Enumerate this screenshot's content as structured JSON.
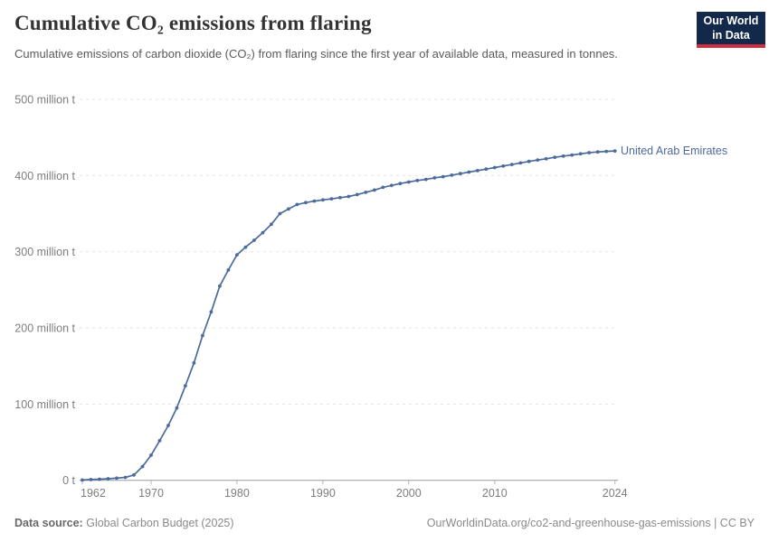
{
  "header": {
    "title": "Cumulative CO₂ emissions from flaring",
    "subtitle": "Cumulative emissions of carbon dioxide (CO₂) from flaring since the first year of available data, measured in tonnes."
  },
  "logo": {
    "line1": "Our World",
    "line2": "in Data",
    "bg_color": "#12294B",
    "accent_color": "#CE2E41"
  },
  "chart_data": {
    "type": "line",
    "title": "Cumulative CO₂ emissions from flaring",
    "subtitle": "Cumulative emissions of carbon dioxide (CO₂) from flaring since the first year of available data, measured in tonnes.",
    "xlabel": "",
    "ylabel": "",
    "unit": "million t",
    "xlim": [
      1962,
      2024
    ],
    "ylim": [
      0,
      500
    ],
    "grid": "horizontal-dashed",
    "legend": "end-of-line-label",
    "xticks": [
      1962,
      1970,
      1980,
      1990,
      2000,
      2010,
      2024
    ],
    "yticks": [
      {
        "value": 0,
        "label": "0 t"
      },
      {
        "value": 100,
        "label": "100 million t"
      },
      {
        "value": 200,
        "label": "200 million t"
      },
      {
        "value": 300,
        "label": "300 million t"
      },
      {
        "value": 400,
        "label": "400 million t"
      },
      {
        "value": 500,
        "label": "500 million t"
      }
    ],
    "x": [
      1962,
      1963,
      1964,
      1965,
      1966,
      1967,
      1968,
      1969,
      1970,
      1971,
      1972,
      1973,
      1974,
      1975,
      1976,
      1977,
      1978,
      1979,
      1980,
      1981,
      1982,
      1983,
      1984,
      1985,
      1986,
      1987,
      1988,
      1989,
      1990,
      1991,
      1992,
      1993,
      1994,
      1995,
      1996,
      1997,
      1998,
      1999,
      2000,
      2001,
      2002,
      2003,
      2004,
      2005,
      2006,
      2007,
      2008,
      2009,
      2010,
      2011,
      2012,
      2013,
      2014,
      2015,
      2016,
      2017,
      2018,
      2019,
      2020,
      2021,
      2022,
      2023,
      2024
    ],
    "series": [
      {
        "name": "United Arab Emirates",
        "color": "#4C6A9C",
        "values": [
          0.4,
          0.9,
          1.4,
          2,
          2.8,
          3.8,
          7,
          18,
          33,
          52,
          72,
          95,
          124,
          154,
          190,
          221,
          255,
          276,
          296,
          306,
          315,
          325,
          336,
          350,
          356,
          362,
          364.5,
          366.5,
          368,
          369.5,
          371,
          372.5,
          375,
          378,
          381,
          384.5,
          387,
          389.5,
          391.5,
          393.5,
          395,
          397,
          398.5,
          400.5,
          402.5,
          404.5,
          406.5,
          408.5,
          410.5,
          412.5,
          414.5,
          416.5,
          418.5,
          420.5,
          422,
          424,
          425.5,
          427,
          428.5,
          430,
          431,
          431.7,
          432.3
        ]
      }
    ]
  },
  "footer": {
    "datasource_label": "Data source:",
    "datasource_value": "Global Carbon Budget (2025)",
    "credit": "OurWorldinData.org/co2-and-greenhouse-gas-emissions | CC BY"
  },
  "colors": {
    "gridline": "#e3e3e3",
    "axis": "#9b9b9b",
    "tick": "#b5b5b5",
    "tick_label": "#7d7d7d"
  }
}
